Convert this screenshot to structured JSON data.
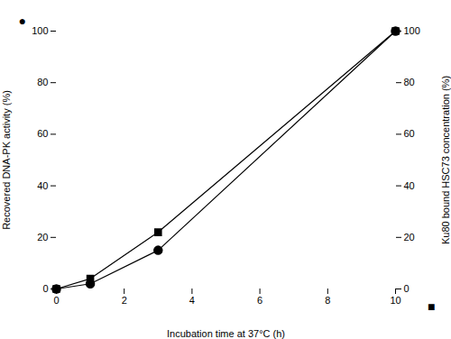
{
  "chart_data": {
    "type": "line",
    "xlabel": "Incubation time at 37°C (h)",
    "ylabel": "Recovered DNA-PK activity (%)",
    "y2label": "Ku80 bound HSC73 concentration (%)",
    "x": [
      0,
      1,
      3,
      10
    ],
    "series": [
      {
        "marker": "circle",
        "color": "#000000",
        "values": [
          0,
          2,
          15,
          100
        ]
      },
      {
        "marker": "square",
        "color": "#000000",
        "values": [
          0,
          4,
          22,
          100
        ]
      }
    ],
    "xlim": [
      0,
      10
    ],
    "xticks": [
      0,
      2,
      4,
      6,
      8,
      10
    ],
    "ylim": [
      0,
      100
    ],
    "yticks": [
      0,
      20,
      40,
      60,
      80,
      100
    ],
    "y2lim": [
      0,
      100
    ],
    "y2ticks": [
      0,
      20,
      40,
      60,
      80,
      100
    ],
    "annotations": [
      {
        "text": "●"
      },
      {
        "text": "■"
      }
    ],
    "grid": false
  }
}
